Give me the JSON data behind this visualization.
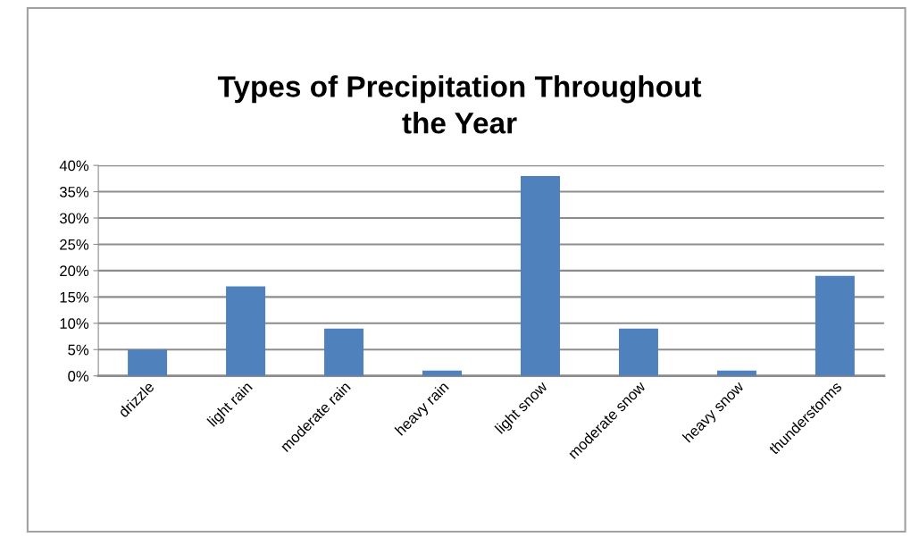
{
  "chart_data": {
    "type": "bar",
    "title": "Types of Precipitation Throughout\nthe Year",
    "categories": [
      "drizzle",
      "light rain",
      "moderate rain",
      "heavy rain",
      "light snow",
      "moderate snow",
      "heavy snow",
      "thunderstorms"
    ],
    "values": [
      5,
      17,
      9,
      1,
      38,
      9,
      1,
      19
    ],
    "color": "#4f81bd",
    "ylim": [
      0,
      40
    ],
    "yticks": [
      {
        "value": 0,
        "label": "0%"
      },
      {
        "value": 5,
        "label": "5%"
      },
      {
        "value": 10,
        "label": "10%"
      },
      {
        "value": 15,
        "label": "15%"
      },
      {
        "value": 20,
        "label": "20%"
      },
      {
        "value": 25,
        "label": "25%"
      },
      {
        "value": 30,
        "label": "30%"
      },
      {
        "value": 35,
        "label": "35%"
      },
      {
        "value": 40,
        "label": "40%"
      }
    ],
    "grid": "y",
    "legend": false
  }
}
